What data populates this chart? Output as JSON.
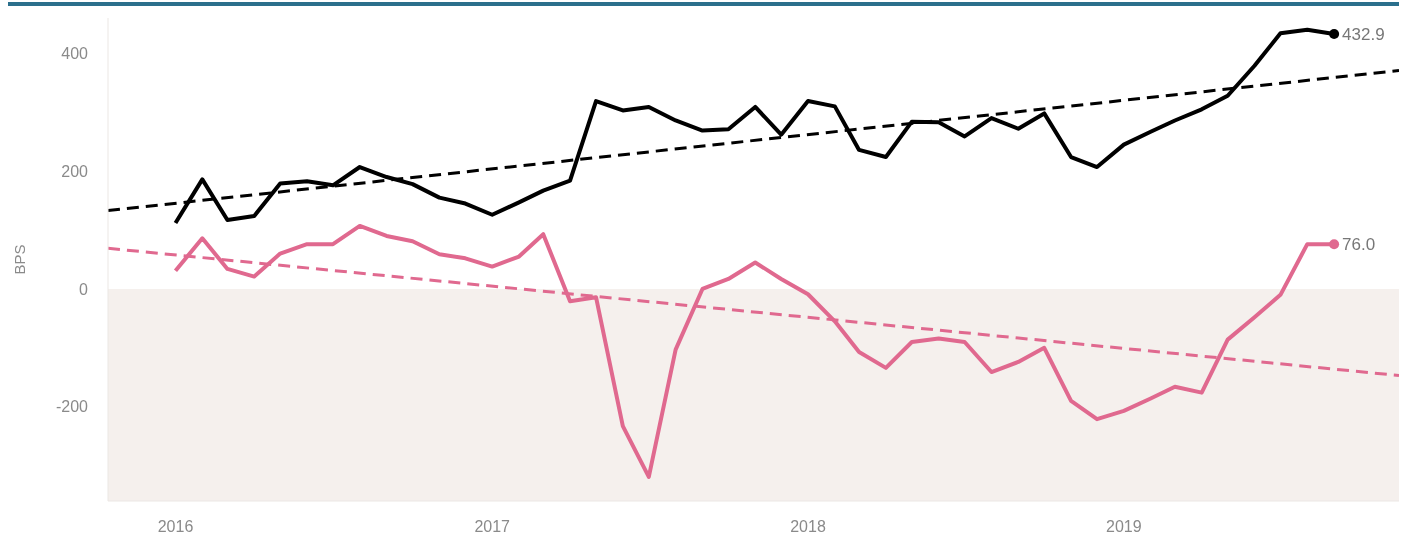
{
  "chart_data": {
    "type": "line",
    "ylabel": "BPS",
    "x": [
      "2016-01",
      "2016-02",
      "2016-03",
      "2016-04",
      "2016-05",
      "2016-06",
      "2016-07",
      "2016-08",
      "2016-09",
      "2016-10",
      "2016-11",
      "2016-12",
      "2017-01",
      "2017-02",
      "2017-03",
      "2017-04",
      "2017-05",
      "2017-06",
      "2017-07",
      "2017-08",
      "2017-09",
      "2017-10",
      "2017-11",
      "2017-12",
      "2018-01",
      "2018-02",
      "2018-03",
      "2018-04",
      "2018-05",
      "2018-06",
      "2018-07",
      "2018-08",
      "2018-09",
      "2018-10",
      "2018-11",
      "2018-12",
      "2019-01",
      "2019-02",
      "2019-03",
      "2019-04",
      "2019-05",
      "2019-06",
      "2019-07",
      "2019-08",
      "2019-09"
    ],
    "series": [
      {
        "color": "#000000",
        "line_style": "solid",
        "values": [
          112,
          186,
          117,
          124,
          179,
          183,
          176,
          207,
          190,
          178,
          155,
          145,
          126,
          147,
          167,
          184,
          319,
          303,
          309,
          286,
          269,
          271,
          309,
          262,
          319,
          310,
          236,
          224,
          284,
          283,
          259,
          290,
          272,
          298,
          224,
          207,
          245,
          267,
          286,
          305,
          328,
          379,
          434,
          440,
          432.9
        ],
        "value_labels": [
          null,
          null,
          null,
          null,
          null,
          null,
          null,
          null,
          null,
          null,
          null,
          null,
          null,
          null,
          null,
          null,
          null,
          null,
          null,
          null,
          null,
          null,
          null,
          null,
          null,
          null,
          null,
          null,
          null,
          null,
          null,
          null,
          null,
          null,
          null,
          null,
          null,
          null,
          null,
          null,
          null,
          null,
          null,
          null,
          "432.9"
        ]
      },
      {
        "color": "#e0698f",
        "line_style": "solid",
        "values": [
          31,
          86,
          34,
          21,
          60,
          76,
          76,
          107,
          90,
          81,
          59,
          52,
          38,
          55,
          93,
          -21,
          -14,
          -233,
          -319,
          -103,
          0,
          17,
          45,
          17,
          -9,
          -55,
          -107,
          -134,
          -90,
          -84,
          -90,
          -141,
          -124,
          -100,
          -190,
          -221,
          -207,
          -186,
          -166,
          -176,
          -86,
          -48,
          -10,
          76,
          76.0
        ],
        "value_labels": [
          null,
          null,
          null,
          null,
          null,
          null,
          null,
          null,
          null,
          null,
          null,
          null,
          null,
          null,
          null,
          null,
          null,
          null,
          null,
          null,
          null,
          null,
          null,
          null,
          null,
          null,
          null,
          null,
          null,
          null,
          null,
          null,
          null,
          null,
          null,
          null,
          null,
          null,
          null,
          null,
          null,
          null,
          null,
          null,
          "76.0"
        ]
      },
      {
        "type": "line",
        "color": "#000000",
        "line_style": "dashed",
        "x": [
          "2015-10-15",
          "2019-11-15"
        ],
        "values": [
          133,
          371
        ]
      },
      {
        "type": "line",
        "color": "#e0698f",
        "line_style": "dashed",
        "x": [
          "2015-10-15",
          "2019-11-15"
        ],
        "values": [
          69,
          -147
        ]
      }
    ],
    "xlim": [
      "2015-10-15",
      "2019-11-15"
    ],
    "xticks": [
      {
        "value": "2016",
        "label": "2016"
      },
      {
        "value": "2017",
        "label": "2017"
      },
      {
        "value": "2018",
        "label": "2018"
      },
      {
        "value": "2019",
        "label": "2019"
      }
    ],
    "ylim": [
      -360,
      460
    ],
    "yticks": [
      -200,
      0,
      200,
      400
    ],
    "bands": [
      {
        "axis": "y",
        "from": -360,
        "to": 0,
        "color": "#f5f0ed"
      }
    ]
  }
}
